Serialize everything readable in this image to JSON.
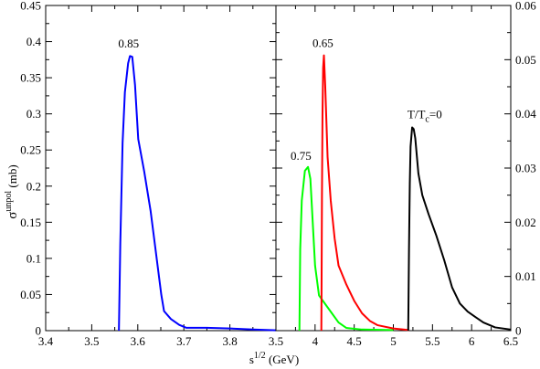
{
  "chart_data": [
    {
      "type": "line",
      "panel": "left",
      "xlabel": "s",
      "xlabel_sup": "1/2",
      "xlabel_unit": " (GeV)",
      "ylabel": "σ",
      "ylabel_sup": "unpol",
      "ylabel_unit": " (mb)",
      "xlim": [
        3.4,
        3.9
      ],
      "ylim": [
        0,
        0.45
      ],
      "xticks": [
        "3.4",
        "3.5",
        "3.6",
        "3.7",
        "3.8"
      ],
      "yticks": [
        "0",
        "0.05",
        "0.1",
        "0.15",
        "0.2",
        "0.25",
        "0.3",
        "0.35",
        "0.4",
        "0.45"
      ],
      "series": [
        {
          "color": "#0000ff",
          "label": "0.85",
          "label_at": [
            3.58,
            0.392
          ],
          "points": [
            [
              3.559,
              0
            ],
            [
              3.562,
              0.12
            ],
            [
              3.567,
              0.26
            ],
            [
              3.572,
              0.33
            ],
            [
              3.579,
              0.37
            ],
            [
              3.583,
              0.38
            ],
            [
              3.588,
              0.379
            ],
            [
              3.594,
              0.34
            ],
            [
              3.601,
              0.265
            ],
            [
              3.614,
              0.22
            ],
            [
              3.628,
              0.165
            ],
            [
              3.641,
              0.1
            ],
            [
              3.651,
              0.05
            ],
            [
              3.657,
              0.027
            ],
            [
              3.672,
              0.016
            ],
            [
              3.69,
              0.008
            ],
            [
              3.705,
              0.004
            ],
            [
              3.75,
              0.004
            ],
            [
              3.8,
              0.003
            ],
            [
              3.85,
              0.0015
            ],
            [
              3.9,
              0.0005
            ]
          ]
        }
      ]
    },
    {
      "type": "line",
      "panel": "right",
      "xlim": [
        3.5,
        6.5
      ],
      "ylim": [
        0,
        0.06
      ],
      "xticks": [
        "3.5",
        "4",
        "4.5",
        "5",
        "5.5",
        "6",
        "6.5"
      ],
      "yticks": [
        "0",
        "0.01",
        "0.02",
        "0.03",
        "0.04",
        "0.05",
        "0.06"
      ],
      "series": [
        {
          "color": "#00ff00",
          "label": "0.75",
          "label_at": [
            3.82,
            0.0315
          ],
          "points": [
            [
              3.8,
              0
            ],
            [
              3.81,
              0.015
            ],
            [
              3.83,
              0.024
            ],
            [
              3.87,
              0.0295
            ],
            [
              3.91,
              0.0302
            ],
            [
              3.94,
              0.028
            ],
            [
              3.97,
              0.02
            ],
            [
              4.0,
              0.012
            ],
            [
              4.05,
              0.0065
            ],
            [
              4.1,
              0.0055
            ],
            [
              4.2,
              0.0035
            ],
            [
              4.3,
              0.0015
            ],
            [
              4.4,
              0.0005
            ],
            [
              4.6,
              0.0002
            ],
            [
              5.0,
              0.0001
            ]
          ]
        },
        {
          "color": "#ff0000",
          "label": "0.65",
          "label_at": [
            4.1,
            0.0523
          ],
          "points": [
            [
              4.08,
              0
            ],
            [
              4.083,
              0.008
            ],
            [
              4.088,
              0.025
            ],
            [
              4.095,
              0.04
            ],
            [
              4.103,
              0.0485
            ],
            [
              4.113,
              0.0508
            ],
            [
              4.13,
              0.045
            ],
            [
              4.16,
              0.032
            ],
            [
              4.2,
              0.024
            ],
            [
              4.25,
              0.017
            ],
            [
              4.3,
              0.012
            ],
            [
              4.4,
              0.0085
            ],
            [
              4.5,
              0.0055
            ],
            [
              4.6,
              0.0032
            ],
            [
              4.7,
              0.0018
            ],
            [
              4.8,
              0.001
            ],
            [
              5.0,
              0.0004
            ],
            [
              5.2,
              0.0001
            ]
          ]
        },
        {
          "color": "#000000",
          "label_main": "T/T",
          "label_sub": "c",
          "label_tail": "=0",
          "label_at": [
            5.18,
            0.0392
          ],
          "points": [
            [
              5.19,
              0
            ],
            [
              5.2,
              0.015
            ],
            [
              5.21,
              0.027
            ],
            [
              5.22,
              0.034
            ],
            [
              5.24,
              0.0375
            ],
            [
              5.26,
              0.0372
            ],
            [
              5.28,
              0.0355
            ],
            [
              5.32,
              0.029
            ],
            [
              5.37,
              0.025
            ],
            [
              5.45,
              0.0215
            ],
            [
              5.55,
              0.0175
            ],
            [
              5.65,
              0.013
            ],
            [
              5.75,
              0.008
            ],
            [
              5.85,
              0.005
            ],
            [
              5.95,
              0.0035
            ],
            [
              6.05,
              0.0025
            ],
            [
              6.15,
              0.0015
            ],
            [
              6.3,
              0.0006
            ],
            [
              6.5,
              0.0002
            ]
          ]
        }
      ]
    }
  ]
}
